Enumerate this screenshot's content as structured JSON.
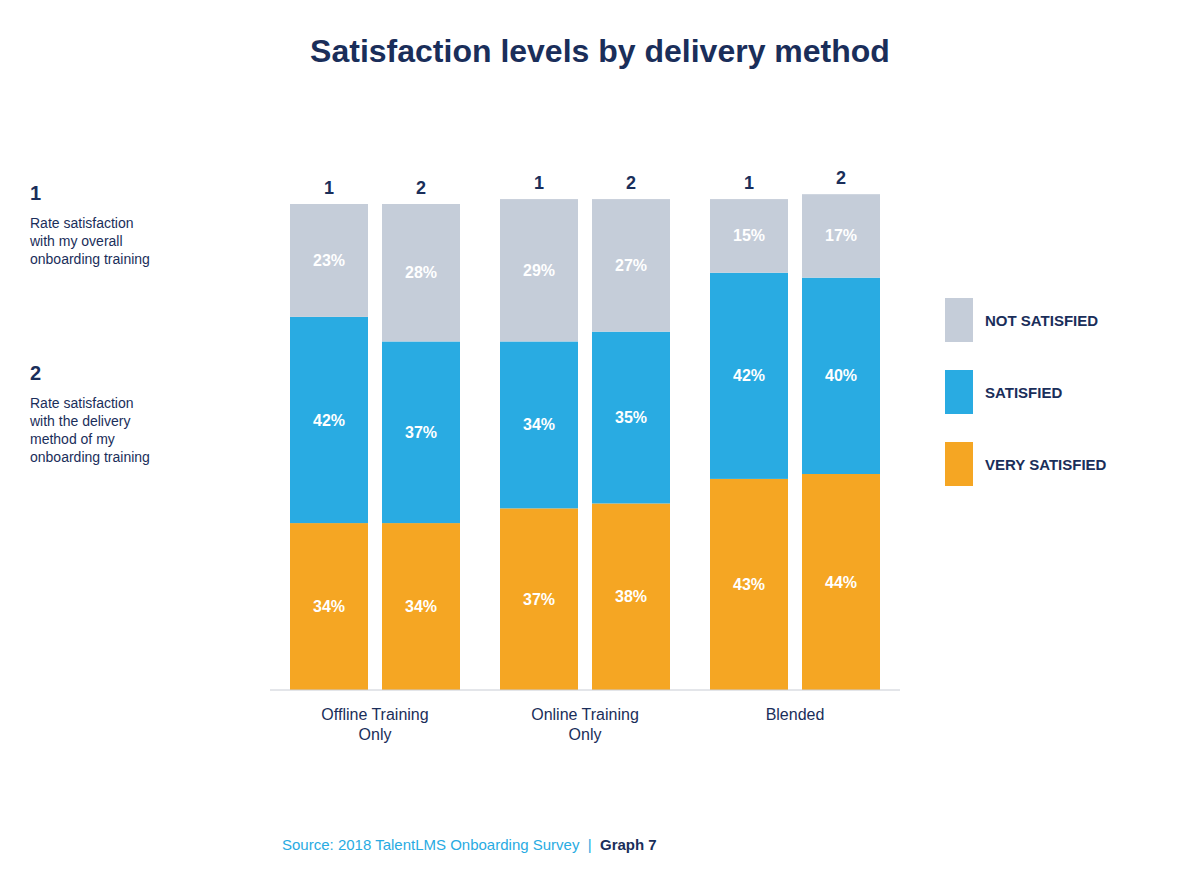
{
  "chart_data": {
    "type": "bar",
    "stacked": true,
    "data_labels": true,
    "tick_labels": false,
    "grid": false,
    "legend": "right",
    "title": "Satisfaction levels by delivery method",
    "categories": [
      "Offline Training\nOnly",
      "Online Training\nOnly",
      "Blended"
    ],
    "subcategories": [
      "1",
      "2"
    ],
    "series": [
      {
        "name": "VERY SATISFIED",
        "color": "#f5a623",
        "values": [
          [
            34,
            34
          ],
          [
            37,
            38
          ],
          [
            43,
            44
          ]
        ],
        "value_labels": [
          [
            "34%",
            "34%"
          ],
          [
            "37%",
            "38%"
          ],
          [
            "43%",
            "44%"
          ]
        ]
      },
      {
        "name": "SATISFIED",
        "color": "#29abe2",
        "values": [
          [
            42,
            37
          ],
          [
            34,
            35
          ],
          [
            42,
            40
          ]
        ],
        "value_labels": [
          [
            "42%",
            "37%"
          ],
          [
            "34%",
            "35%"
          ],
          [
            "42%",
            "40%"
          ]
        ]
      },
      {
        "name": "NOT SATISFIED",
        "color": "#c5cdd9",
        "values": [
          [
            23,
            28
          ],
          [
            29,
            27
          ],
          [
            15,
            17
          ]
        ],
        "value_labels": [
          [
            "23%",
            "28%"
          ],
          [
            "29%",
            "27%"
          ],
          [
            "15%",
            "17%"
          ]
        ]
      }
    ],
    "ylim": [
      0,
      110
    ],
    "annotations": [
      {
        "label": "1",
        "text": "Rate satisfaction\nwith my overall\nonboarding training"
      },
      {
        "label": "2",
        "text": "Rate satisfaction\nwith the delivery\nmethod of my\nonboarding training"
      }
    ],
    "source": "Source: 2018 TalentLMS Onboarding Survey  |  ",
    "source_label": "Graph 7"
  }
}
